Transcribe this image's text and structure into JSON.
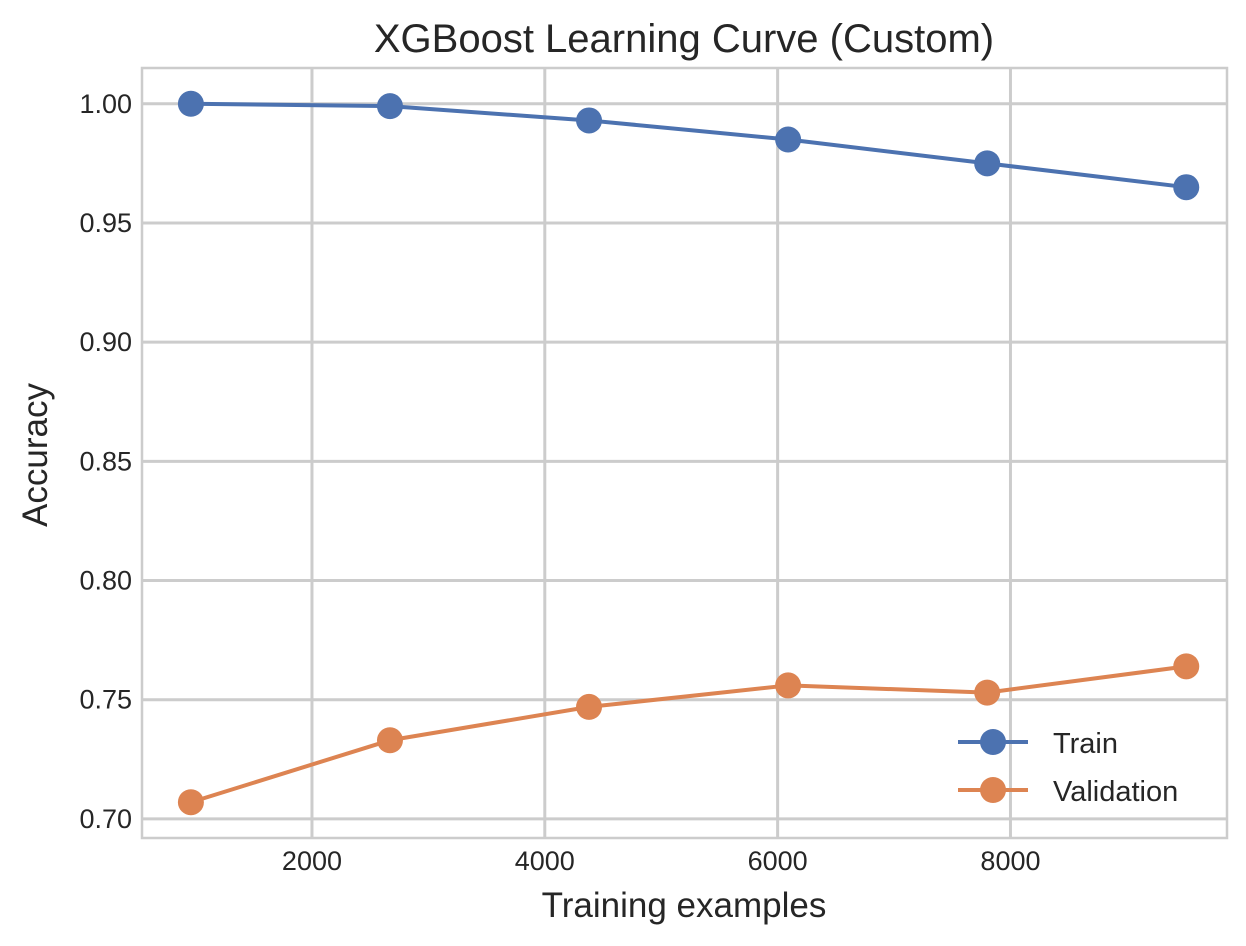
{
  "chart_data": {
    "type": "line",
    "title": "XGBoost Learning Curve (Custom)",
    "xlabel": "Training examples",
    "ylabel": "Accuracy",
    "xlim": [
      540,
      9860
    ],
    "ylim": [
      0.692,
      1.015
    ],
    "xticks": [
      2000,
      4000,
      6000,
      8000
    ],
    "xtick_labels": [
      "2000",
      "4000",
      "6000",
      "8000"
    ],
    "yticks": [
      0.7,
      0.75,
      0.8,
      0.85,
      0.9,
      0.95,
      1.0
    ],
    "ytick_labels": [
      "0.70",
      "0.75",
      "0.80",
      "0.85",
      "0.90",
      "0.95",
      "1.00"
    ],
    "grid": true,
    "legend_position": "lower-right",
    "x": [
      960,
      2670,
      4380,
      6090,
      7800,
      9510
    ],
    "series": [
      {
        "name": "Train",
        "color": "#4c72b0",
        "marker": "circle",
        "values": [
          1.0,
          0.999,
          0.993,
          0.985,
          0.975,
          0.965
        ]
      },
      {
        "name": "Validation",
        "color": "#dd8452",
        "marker": "circle",
        "values": [
          0.707,
          0.733,
          0.747,
          0.756,
          0.753,
          0.764
        ]
      }
    ]
  }
}
